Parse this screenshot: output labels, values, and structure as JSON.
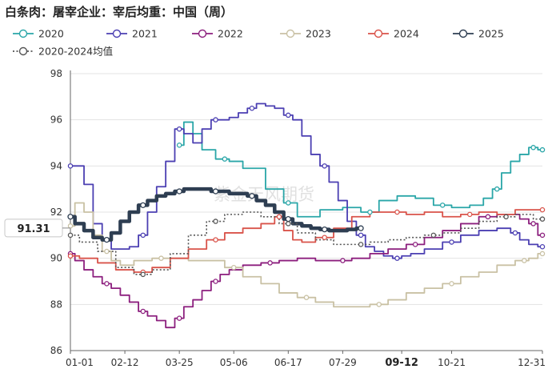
{
  "chart_data": {
    "type": "line",
    "title": "白条肉：屠宰企业：宰后均重：中国（周）",
    "watermark": "紫金天风期货",
    "ylim": [
      86,
      98
    ],
    "yticks": [
      "86",
      "88",
      "90",
      "92",
      "94",
      "96",
      "98"
    ],
    "xticks": [
      "01-01",
      "02-12",
      "03-25",
      "05-06",
      "06-17",
      "07-29",
      "09-12",
      "10-21",
      "12-31"
    ],
    "x_highlight": "09-12",
    "last_value_label": "91.31",
    "grid": true,
    "legend_position": "top",
    "series": [
      {
        "name": "2020",
        "color": "#2aa6a8",
        "points": [
          [
            12,
            94.9
          ],
          [
            13,
            95.9
          ],
          [
            14,
            95.4
          ],
          [
            15,
            94.7
          ],
          [
            17,
            94.3
          ],
          [
            18,
            94.2
          ],
          [
            20,
            93.9
          ],
          [
            23,
            93.0
          ],
          [
            24,
            92.4
          ],
          [
            26,
            91.8
          ],
          [
            29,
            92.1
          ],
          [
            31,
            92.2
          ],
          [
            33,
            92.0
          ],
          [
            35,
            92.5
          ],
          [
            37,
            92.7
          ],
          [
            39,
            92.6
          ],
          [
            41,
            92.3
          ],
          [
            43,
            92.2
          ],
          [
            45,
            92.3
          ],
          [
            46,
            92.6
          ],
          [
            47,
            93.0
          ],
          [
            48,
            93.7
          ],
          [
            49,
            94.2
          ],
          [
            50,
            94.5
          ],
          [
            51,
            94.8
          ],
          [
            52,
            94.7
          ]
        ]
      },
      {
        "name": "2021",
        "color": "#4b3fb2",
        "points": [
          [
            0,
            94.0
          ],
          [
            1,
            94.0
          ],
          [
            2,
            93.2
          ],
          [
            3,
            91.5
          ],
          [
            4,
            90.8
          ],
          [
            5,
            90.4
          ],
          [
            6,
            90.4
          ],
          [
            7,
            90.5
          ],
          [
            8,
            91.0
          ],
          [
            9,
            92.0
          ],
          [
            10,
            93.1
          ],
          [
            11,
            94.2
          ],
          [
            12,
            95.6
          ],
          [
            13,
            95.4
          ],
          [
            14,
            95.0
          ],
          [
            15,
            95.6
          ],
          [
            16,
            96.0
          ],
          [
            17,
            96.0
          ],
          [
            18,
            96.1
          ],
          [
            19,
            96.3
          ],
          [
            20,
            96.5
          ],
          [
            21,
            96.7
          ],
          [
            22,
            96.6
          ],
          [
            23,
            96.5
          ],
          [
            24,
            96.2
          ],
          [
            25,
            96.0
          ],
          [
            26,
            95.3
          ],
          [
            27,
            94.5
          ],
          [
            28,
            94.0
          ],
          [
            29,
            93.3
          ],
          [
            30,
            92.5
          ],
          [
            31,
            91.6
          ],
          [
            32,
            91.0
          ],
          [
            33,
            90.5
          ],
          [
            34,
            90.3
          ],
          [
            35,
            90.1
          ],
          [
            36,
            90.0
          ],
          [
            37,
            90.1
          ],
          [
            38,
            90.2
          ],
          [
            40,
            90.4
          ],
          [
            42,
            90.7
          ],
          [
            44,
            91.0
          ],
          [
            46,
            91.2
          ],
          [
            48,
            91.3
          ],
          [
            49,
            91.1
          ],
          [
            50,
            90.8
          ],
          [
            51,
            90.6
          ],
          [
            52,
            90.5
          ]
        ]
      },
      {
        "name": "2022",
        "color": "#8c1f7e",
        "points": [
          [
            0,
            90.2
          ],
          [
            1,
            89.9
          ],
          [
            2,
            89.5
          ],
          [
            3,
            89.2
          ],
          [
            4,
            88.9
          ],
          [
            5,
            88.7
          ],
          [
            6,
            88.4
          ],
          [
            7,
            88.1
          ],
          [
            8,
            87.7
          ],
          [
            9,
            87.5
          ],
          [
            10,
            87.3
          ],
          [
            11,
            87.0
          ],
          [
            12,
            87.4
          ],
          [
            13,
            87.9
          ],
          [
            14,
            88.2
          ],
          [
            15,
            88.6
          ],
          [
            16,
            89.0
          ],
          [
            17,
            89.3
          ],
          [
            18,
            89.5
          ],
          [
            20,
            89.7
          ],
          [
            22,
            89.8
          ],
          [
            24,
            89.9
          ],
          [
            26,
            90.0
          ],
          [
            28,
            89.9
          ],
          [
            30,
            89.9
          ],
          [
            32,
            90.0
          ],
          [
            34,
            90.2
          ],
          [
            36,
            90.4
          ],
          [
            38,
            90.6
          ],
          [
            40,
            90.9
          ],
          [
            42,
            91.2
          ],
          [
            44,
            91.5
          ],
          [
            46,
            91.8
          ],
          [
            48,
            91.9
          ],
          [
            49,
            91.9
          ],
          [
            50,
            91.7
          ],
          [
            51,
            91.5
          ],
          [
            52,
            91.0
          ]
        ]
      },
      {
        "name": "2023",
        "color": "#c9c1a4",
        "points": [
          [
            0,
            91.4
          ],
          [
            1,
            92.4
          ],
          [
            2,
            92.0
          ],
          [
            3,
            91.0
          ],
          [
            4,
            90.3
          ],
          [
            5,
            89.9
          ],
          [
            6,
            89.7
          ],
          [
            8,
            89.9
          ],
          [
            10,
            90.0
          ],
          [
            12,
            90.0
          ],
          [
            14,
            89.9
          ],
          [
            16,
            89.9
          ],
          [
            18,
            89.6
          ],
          [
            20,
            89.2
          ],
          [
            22,
            88.9
          ],
          [
            24,
            88.5
          ],
          [
            26,
            88.3
          ],
          [
            28,
            88.1
          ],
          [
            30,
            87.9
          ],
          [
            32,
            87.9
          ],
          [
            34,
            88.0
          ],
          [
            36,
            88.2
          ],
          [
            38,
            88.5
          ],
          [
            40,
            88.7
          ],
          [
            42,
            88.9
          ],
          [
            44,
            89.2
          ],
          [
            46,
            89.4
          ],
          [
            48,
            89.7
          ],
          [
            50,
            89.9
          ],
          [
            51,
            90.0
          ],
          [
            52,
            90.2
          ]
        ]
      },
      {
        "name": "2024",
        "color": "#d9534a",
        "points": [
          [
            0,
            90.1
          ],
          [
            2,
            90.0
          ],
          [
            4,
            89.8
          ],
          [
            6,
            89.5
          ],
          [
            8,
            89.4
          ],
          [
            10,
            89.6
          ],
          [
            12,
            90.0
          ],
          [
            14,
            90.4
          ],
          [
            16,
            90.8
          ],
          [
            18,
            91.1
          ],
          [
            20,
            91.3
          ],
          [
            22,
            91.5
          ],
          [
            23,
            91.8
          ],
          [
            24,
            91.2
          ],
          [
            25,
            90.8
          ],
          [
            26,
            90.7
          ],
          [
            28,
            90.9
          ],
          [
            30,
            91.3
          ],
          [
            32,
            91.8
          ],
          [
            34,
            92.0
          ],
          [
            36,
            92.0
          ],
          [
            38,
            91.9
          ],
          [
            40,
            92.0
          ],
          [
            42,
            91.8
          ],
          [
            44,
            91.9
          ],
          [
            46,
            92.0
          ],
          [
            48,
            91.9
          ],
          [
            50,
            92.1
          ],
          [
            52,
            92.1
          ]
        ]
      },
      {
        "name": "2025",
        "color": "#2e3e52",
        "points": [
          [
            0,
            91.8
          ],
          [
            1,
            91.5
          ],
          [
            2,
            91.2
          ],
          [
            3,
            90.9
          ],
          [
            4,
            90.8
          ],
          [
            5,
            91.1
          ],
          [
            6,
            91.6
          ],
          [
            7,
            92.0
          ],
          [
            8,
            92.3
          ],
          [
            9,
            92.5
          ],
          [
            10,
            92.7
          ],
          [
            11,
            92.8
          ],
          [
            12,
            92.9
          ],
          [
            13,
            93.0
          ],
          [
            14,
            93.0
          ],
          [
            15,
            93.0
          ],
          [
            16,
            92.9
          ],
          [
            17,
            92.9
          ],
          [
            18,
            92.8
          ],
          [
            19,
            92.8
          ],
          [
            20,
            92.7
          ],
          [
            21,
            92.5
          ],
          [
            22,
            92.3
          ],
          [
            23,
            92.0
          ],
          [
            24,
            91.7
          ],
          [
            25,
            91.5
          ],
          [
            26,
            91.4
          ],
          [
            27,
            91.3
          ],
          [
            28,
            91.25
          ],
          [
            29,
            91.2
          ],
          [
            30,
            91.2
          ],
          [
            31,
            91.25
          ],
          [
            32,
            91.3
          ]
        ]
      },
      {
        "name": "2020-2024均值",
        "color": "#555555",
        "dashed": true,
        "points": [
          [
            0,
            91.0
          ],
          [
            2,
            90.7
          ],
          [
            4,
            90.3
          ],
          [
            6,
            89.6
          ],
          [
            8,
            89.3
          ],
          [
            10,
            89.5
          ],
          [
            12,
            90.2
          ],
          [
            14,
            91.0
          ],
          [
            16,
            91.6
          ],
          [
            18,
            91.9
          ],
          [
            20,
            92.0
          ],
          [
            22,
            91.8
          ],
          [
            24,
            91.5
          ],
          [
            26,
            91.1
          ],
          [
            28,
            90.8
          ],
          [
            30,
            90.6
          ],
          [
            32,
            90.6
          ],
          [
            34,
            90.7
          ],
          [
            36,
            90.8
          ],
          [
            38,
            90.9
          ],
          [
            40,
            91.0
          ],
          [
            42,
            91.1
          ],
          [
            44,
            91.3
          ],
          [
            46,
            91.6
          ],
          [
            48,
            91.8
          ],
          [
            50,
            91.9
          ],
          [
            52,
            91.7
          ]
        ]
      }
    ]
  }
}
